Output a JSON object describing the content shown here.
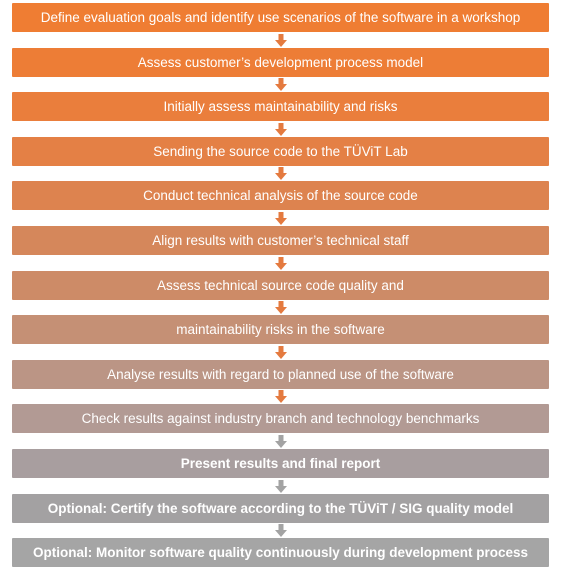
{
  "colors": {
    "arrow": "#e47a3f",
    "grey_arrow": "#a3a3a3"
  },
  "steps": [
    {
      "label": "Define evaluation goals and identify use scenarios of the software in a workshop",
      "color": "#ef7d33",
      "bold": false
    },
    {
      "label": "Assess customer’s development process model",
      "color": "#ed7d36",
      "bold": false
    },
    {
      "label": "Initially assess maintainability and risks",
      "color": "#ea7e3c",
      "bold": false
    },
    {
      "label": "Sending the source code to the TÜViT Lab",
      "color": "#e48045",
      "bold": false
    },
    {
      "label": "Conduct technical analysis of the source code",
      "color": "#dd834f",
      "bold": false
    },
    {
      "label": "Align results with customer’s technical staff",
      "color": "#d5875b",
      "bold": false
    },
    {
      "label": "Assess technical source code quality and",
      "color": "#cd8b67",
      "bold": false
    },
    {
      "label": "maintainability risks in the software",
      "color": "#c59075",
      "bold": false
    },
    {
      "label": "Analyse results with regard to planned use of the software",
      "color": "#bb9585",
      "bold": false
    },
    {
      "label": "Check results against industry branch and technology benchmarks",
      "color": "#b29a94",
      "bold": false
    },
    {
      "label": "Present results and final report",
      "color": "#a89e9f",
      "bold": true
    },
    {
      "label": "Optional: Certify the software according to the TÜViT / SIG quality model",
      "color": "#a3a1a2",
      "bold": true
    },
    {
      "label": "Optional: Monitor software quality continuously during development process",
      "color": "#a5a5a5",
      "bold": true
    }
  ]
}
